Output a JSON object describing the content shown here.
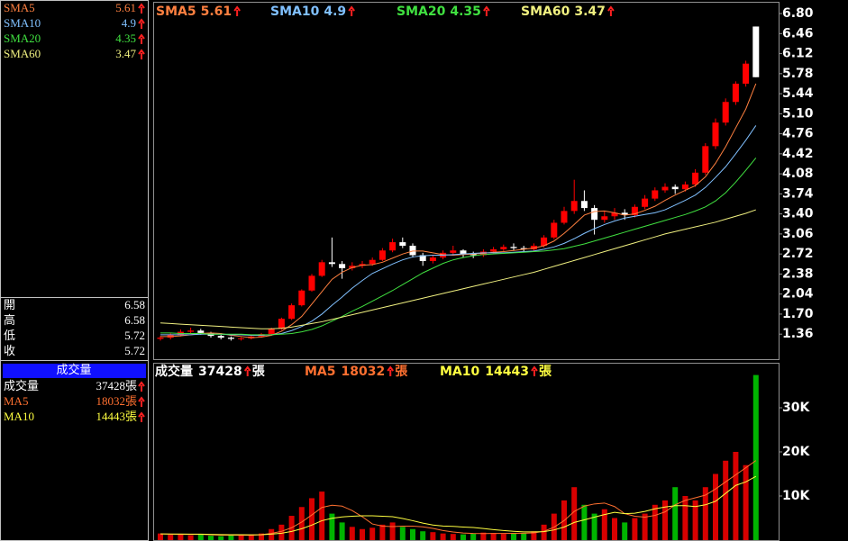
{
  "chart_data": [
    {
      "type": "candlestick",
      "open": [
        1.28,
        1.3,
        1.35,
        1.4,
        1.42,
        1.38,
        1.33,
        1.3,
        1.28,
        1.29,
        1.32,
        1.36,
        1.45,
        1.62,
        1.85,
        2.1,
        2.35,
        2.58,
        2.55,
        2.48,
        2.52,
        2.55,
        2.62,
        2.78,
        2.92,
        2.86,
        2.7,
        2.6,
        2.66,
        2.74,
        2.78,
        2.72,
        2.7,
        2.76,
        2.8,
        2.84,
        2.82,
        2.8,
        2.86,
        3.0,
        3.25,
        3.45,
        3.62,
        3.5,
        3.3,
        3.36,
        3.42,
        3.38,
        3.52,
        3.66,
        3.8,
        3.86,
        3.82,
        3.9,
        4.1,
        4.55,
        4.95,
        5.3,
        5.61,
        6.58
      ],
      "high": [
        1.33,
        1.38,
        1.44,
        1.47,
        1.45,
        1.4,
        1.35,
        1.32,
        1.31,
        1.34,
        1.38,
        1.47,
        1.64,
        1.88,
        2.12,
        2.38,
        2.62,
        3.0,
        2.6,
        2.58,
        2.6,
        2.66,
        2.82,
        2.98,
        3.0,
        2.9,
        2.74,
        2.7,
        2.78,
        2.86,
        2.8,
        2.76,
        2.8,
        2.84,
        2.88,
        2.9,
        2.86,
        2.9,
        3.04,
        3.3,
        3.52,
        3.98,
        3.8,
        3.55,
        3.45,
        3.5,
        3.48,
        3.56,
        3.72,
        3.85,
        3.92,
        3.9,
        3.95,
        4.16,
        4.6,
        5.02,
        5.36,
        5.65,
        6.0,
        6.58
      ],
      "low": [
        1.25,
        1.27,
        1.32,
        1.37,
        1.35,
        1.3,
        1.27,
        1.25,
        1.25,
        1.27,
        1.3,
        1.34,
        1.43,
        1.6,
        1.83,
        2.08,
        2.33,
        2.5,
        2.3,
        2.44,
        2.48,
        2.52,
        2.6,
        2.75,
        2.82,
        2.66,
        2.52,
        2.56,
        2.63,
        2.7,
        2.66,
        2.65,
        2.67,
        2.73,
        2.77,
        2.78,
        2.76,
        2.77,
        2.83,
        2.97,
        3.22,
        3.4,
        3.45,
        3.05,
        3.25,
        3.3,
        3.3,
        3.34,
        3.48,
        3.62,
        3.76,
        3.74,
        3.78,
        3.86,
        4.06,
        4.5,
        4.9,
        5.25,
        5.56,
        5.72
      ],
      "close": [
        1.3,
        1.35,
        1.4,
        1.42,
        1.38,
        1.33,
        1.3,
        1.28,
        1.29,
        1.32,
        1.36,
        1.45,
        1.62,
        1.85,
        2.1,
        2.35,
        2.58,
        2.55,
        2.48,
        2.52,
        2.55,
        2.62,
        2.78,
        2.92,
        2.86,
        2.7,
        2.6,
        2.66,
        2.74,
        2.78,
        2.72,
        2.7,
        2.76,
        2.8,
        2.84,
        2.82,
        2.8,
        2.86,
        3.0,
        3.25,
        3.45,
        3.62,
        3.5,
        3.3,
        3.36,
        3.42,
        3.38,
        3.52,
        3.66,
        3.8,
        3.86,
        3.82,
        3.9,
        4.1,
        4.55,
        4.95,
        5.3,
        5.61,
        5.95,
        5.72
      ],
      "up_color": "#ff0000",
      "down_color": "#ffffff",
      "series": [
        {
          "name": "SMA5",
          "color": "#ff8040",
          "values": [
            1.32,
            1.32,
            1.33,
            1.35,
            1.37,
            1.38,
            1.37,
            1.34,
            1.32,
            1.3,
            1.31,
            1.34,
            1.41,
            1.52,
            1.66,
            1.87,
            2.08,
            2.29,
            2.41,
            2.49,
            2.53,
            2.54,
            2.58,
            2.65,
            2.72,
            2.77,
            2.77,
            2.74,
            2.71,
            2.7,
            2.71,
            2.72,
            2.73,
            2.75,
            2.76,
            2.78,
            2.8,
            2.82,
            2.86,
            2.94,
            3.07,
            3.22,
            3.38,
            3.44,
            3.45,
            3.42,
            3.38,
            3.4,
            3.46,
            3.53,
            3.63,
            3.72,
            3.8,
            3.88,
            4.03,
            4.26,
            4.54,
            4.86,
            5.18,
            5.61
          ]
        },
        {
          "name": "SMA10",
          "color": "#80c0ff",
          "values": [
            1.35,
            1.35,
            1.35,
            1.35,
            1.36,
            1.36,
            1.36,
            1.35,
            1.35,
            1.34,
            1.34,
            1.35,
            1.37,
            1.42,
            1.49,
            1.58,
            1.7,
            1.85,
            1.99,
            2.14,
            2.27,
            2.39,
            2.47,
            2.55,
            2.62,
            2.67,
            2.69,
            2.7,
            2.7,
            2.71,
            2.72,
            2.73,
            2.74,
            2.74,
            2.74,
            2.75,
            2.76,
            2.77,
            2.8,
            2.84,
            2.9,
            2.98,
            3.07,
            3.15,
            3.22,
            3.28,
            3.33,
            3.36,
            3.39,
            3.42,
            3.47,
            3.55,
            3.63,
            3.72,
            3.85,
            4.02,
            4.2,
            4.42,
            4.65,
            4.9
          ]
        },
        {
          "name": "SMA20",
          "color": "#40e040",
          "values": [
            1.38,
            1.38,
            1.37,
            1.37,
            1.37,
            1.36,
            1.36,
            1.36,
            1.36,
            1.35,
            1.35,
            1.35,
            1.36,
            1.37,
            1.4,
            1.44,
            1.5,
            1.58,
            1.66,
            1.75,
            1.83,
            1.92,
            2.01,
            2.1,
            2.2,
            2.3,
            2.4,
            2.48,
            2.56,
            2.62,
            2.66,
            2.69,
            2.71,
            2.72,
            2.73,
            2.74,
            2.75,
            2.76,
            2.77,
            2.79,
            2.81,
            2.85,
            2.89,
            2.94,
            2.99,
            3.04,
            3.09,
            3.14,
            3.19,
            3.24,
            3.29,
            3.34,
            3.39,
            3.45,
            3.52,
            3.62,
            3.76,
            3.94,
            4.14,
            4.35
          ]
        },
        {
          "name": "SMA60",
          "color": "#f0f080",
          "values": [
            1.55,
            1.54,
            1.53,
            1.52,
            1.51,
            1.5,
            1.49,
            1.48,
            1.47,
            1.46,
            1.45,
            1.45,
            1.46,
            1.48,
            1.51,
            1.54,
            1.57,
            1.61,
            1.65,
            1.69,
            1.73,
            1.77,
            1.81,
            1.85,
            1.89,
            1.93,
            1.97,
            2.01,
            2.05,
            2.09,
            2.13,
            2.17,
            2.21,
            2.25,
            2.29,
            2.33,
            2.37,
            2.41,
            2.46,
            2.51,
            2.56,
            2.61,
            2.66,
            2.71,
            2.76,
            2.81,
            2.86,
            2.91,
            2.96,
            3.01,
            3.06,
            3.1,
            3.14,
            3.18,
            3.22,
            3.26,
            3.31,
            3.36,
            3.41,
            3.47
          ]
        }
      ],
      "ylim": [
        0.92,
        7.03
      ],
      "yticks": [
        {
          "value": 6.8,
          "label": "6.80"
        },
        6.46,
        6.12,
        5.78,
        5.44,
        {
          "value": 5.1,
          "label": "5.10"
        },
        4.76,
        4.42,
        4.08,
        3.74,
        {
          "value": 3.4,
          "label": "3.40"
        },
        3.06,
        2.72,
        2.38,
        2.04,
        {
          "value": 1.7,
          "label": "1.70"
        },
        1.36
      ]
    },
    {
      "type": "bar",
      "title": "成交量",
      "unit": "張",
      "values": [
        1500,
        1200,
        1400,
        1100,
        1300,
        1000,
        900,
        1100,
        1200,
        1300,
        1500,
        2500,
        3500,
        5500,
        7500,
        9500,
        11000,
        6000,
        4000,
        3000,
        2500,
        2800,
        3500,
        4000,
        3000,
        2500,
        2000,
        1800,
        1500,
        1400,
        1300,
        1500,
        1700,
        1600,
        1400,
        1500,
        1600,
        2000,
        3500,
        6000,
        9000,
        12000,
        8000,
        6000,
        7000,
        5000,
        4000,
        5000,
        6000,
        8000,
        9000,
        12000,
        10000,
        9000,
        12000,
        15000,
        18000,
        20000,
        17000,
        37428
      ],
      "up_color": "#d80000",
      "down_color": "#00b400",
      "series": [
        {
          "name": "MA5",
          "color": "#ff7030",
          "values": [
            1400,
            1350,
            1300,
            1300,
            1300,
            1200,
            1130,
            1120,
            1100,
            1100,
            1220,
            1520,
            1980,
            2800,
            4100,
            5700,
            7400,
            7900,
            7700,
            6700,
            5300,
            3660,
            3160,
            3060,
            3160,
            3160,
            3000,
            2660,
            2160,
            1840,
            1600,
            1500,
            1480,
            1500,
            1500,
            1540,
            1560,
            1620,
            2000,
            2920,
            4420,
            6500,
            7700,
            8200,
            8400,
            7600,
            6000,
            5400,
            5200,
            5600,
            6400,
            8000,
            9000,
            9600,
            10200,
            11600,
            13200,
            14800,
            16400,
            18032
          ]
        },
        {
          "name": "MA10",
          "color": "#ffff40",
          "values": [
            1400,
            1380,
            1370,
            1360,
            1340,
            1300,
            1260,
            1230,
            1220,
            1200,
            1220,
            1340,
            1550,
            1960,
            2580,
            3400,
            4400,
            4940,
            5250,
            5420,
            5520,
            5520,
            5400,
            5300,
            4900,
            4400,
            3850,
            3420,
            3200,
            3100,
            2970,
            2850,
            2620,
            2380,
            2160,
            2000,
            1850,
            1860,
            1910,
            2310,
            2960,
            4000,
            4600,
            5200,
            5800,
            6300,
            6000,
            6100,
            6500,
            7100,
            7500,
            7800,
            7800,
            7600,
            8000,
            8800,
            10600,
            12400,
            13200,
            14443
          ]
        }
      ],
      "ylim": [
        0,
        40000
      ],
      "yticks": [
        {
          "value": 10000,
          "label": "10K"
        },
        {
          "value": 20000,
          "label": "20K"
        },
        {
          "value": 30000,
          "label": "30K"
        }
      ]
    }
  ],
  "ohlc_labels": [
    "開",
    "高",
    "低",
    "收"
  ]
}
